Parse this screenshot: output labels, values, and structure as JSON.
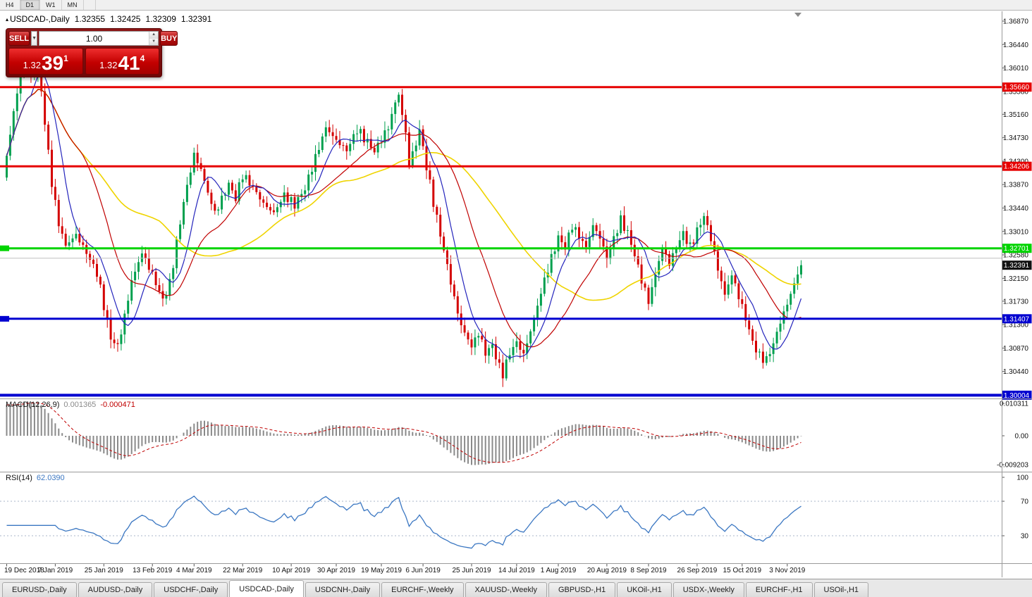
{
  "toolbar": {
    "timeframes": [
      {
        "label": "H4",
        "active": false
      },
      {
        "label": "D1",
        "active": true
      },
      {
        "label": "W1",
        "active": false
      },
      {
        "label": "MN",
        "active": false
      }
    ]
  },
  "header": {
    "marker": "▴",
    "symbol": "USDCAD-,Daily",
    "open": "1.32355",
    "high": "1.32425",
    "low": "1.32309",
    "close": "1.32391"
  },
  "one_click": {
    "sell_label": "SELL",
    "buy_label": "BUY",
    "volume": "1.00",
    "dropdown_icon": "▼",
    "spinner_up": "▲",
    "spinner_down": "▼",
    "sell_price": {
      "prefix": "1.32",
      "big": "39",
      "sup": "1"
    },
    "buy_price": {
      "prefix": "1.32",
      "big": "41",
      "sup": "4"
    }
  },
  "price_axis_ticks": [
    "1.36870",
    "1.36440",
    "1.36010",
    "1.35580",
    "1.35160",
    "1.34730",
    "1.34300",
    "1.33870",
    "1.33440",
    "1.33010",
    "1.32580",
    "1.32150",
    "1.31730",
    "1.31300",
    "1.30870",
    "1.30440"
  ],
  "macd_panel": {
    "title": "MACD(12,26,9)",
    "main_value": "0.001365",
    "signal_value": "-0.000471",
    "axis_labels": [
      {
        "text": "0.010311",
        "value": 0.010311
      },
      {
        "text": "0.00",
        "value": 0
      },
      {
        "text": "-0.009203",
        "value": -0.009203
      }
    ]
  },
  "rsi_panel": {
    "title": "RSI(14)",
    "value": "62.0390",
    "axis_labels": [
      {
        "text": "100",
        "value": 100
      },
      {
        "text": "70",
        "value": 70
      },
      {
        "text": "30",
        "value": 30
      }
    ],
    "levels": [
      70,
      30
    ]
  },
  "date_axis": {
    "labels": [
      "19 Dec 2018",
      "7 Jan 2019",
      "25 Jan 2019",
      "13 Feb 2019",
      "4 Mar 2019",
      "22 Mar 2019",
      "10 Apr 2019",
      "30 Apr 2019",
      "19 May 2019",
      "6 Jun 2019",
      "25 Jun 2019",
      "14 Jul 2019",
      "1 Aug 2019",
      "20 Aug 2019",
      "8 Sep 2019",
      "26 Sep 2019",
      "15 Oct 2019",
      "3 Nov 2019"
    ],
    "indices": [
      0,
      14,
      28,
      42,
      54,
      68,
      82,
      95,
      108,
      120,
      134,
      147,
      159,
      173,
      185,
      199,
      212,
      225
    ]
  },
  "tabs": [
    {
      "label": "EURUSD-,Daily",
      "active": false
    },
    {
      "label": "AUDUSD-,Daily",
      "active": false
    },
    {
      "label": "USDCHF-,Daily",
      "active": false
    },
    {
      "label": "USDCAD-,Daily",
      "active": true
    },
    {
      "label": "USDCNH-,Daily",
      "active": false
    },
    {
      "label": "EURCHF-,Weekly",
      "active": false
    },
    {
      "label": "XAUUSD-,Weekly",
      "active": false
    },
    {
      "label": "GBPUSD-,H1",
      "active": false
    },
    {
      "label": "UKOil-,H1",
      "active": false
    },
    {
      "label": "USDX-,Weekly",
      "active": false
    },
    {
      "label": "EURCHF-,H1",
      "active": false
    },
    {
      "label": "USOil-,H1",
      "active": false
    }
  ],
  "chart_data": {
    "type": "candlestick",
    "symbol": "USDCAD",
    "timeframe": "Daily",
    "num_candles": 230,
    "last_close": 1.32391,
    "quote": {
      "open": 1.32355,
      "high": 1.32425,
      "low": 1.32309,
      "close": 1.32391,
      "bid": 1.32391,
      "ask": 1.32414
    },
    "price_range": {
      "top": 1.3687,
      "bottom": 1.3044
    },
    "close_waypoints": [
      [
        0,
        1.344
      ],
      [
        2,
        1.352
      ],
      [
        4,
        1.359
      ],
      [
        6,
        1.3625
      ],
      [
        7,
        1.358
      ],
      [
        9,
        1.3618
      ],
      [
        11,
        1.35
      ],
      [
        13,
        1.339
      ],
      [
        15,
        1.3315
      ],
      [
        17,
        1.3275
      ],
      [
        20,
        1.3295
      ],
      [
        23,
        1.3262
      ],
      [
        26,
        1.3225
      ],
      [
        28,
        1.3165
      ],
      [
        30,
        1.3105
      ],
      [
        32,
        1.309
      ],
      [
        34,
        1.3145
      ],
      [
        36,
        1.321
      ],
      [
        39,
        1.3262
      ],
      [
        42,
        1.3222
      ],
      [
        45,
        1.3175
      ],
      [
        47,
        1.3205
      ],
      [
        49,
        1.328
      ],
      [
        51,
        1.3355
      ],
      [
        54,
        1.3442
      ],
      [
        56,
        1.3415
      ],
      [
        58,
        1.3372
      ],
      [
        60,
        1.3335
      ],
      [
        62,
        1.336
      ],
      [
        64,
        1.3388
      ],
      [
        66,
        1.3362
      ],
      [
        68,
        1.3405
      ],
      [
        71,
        1.3382
      ],
      [
        74,
        1.3352
      ],
      [
        77,
        1.3335
      ],
      [
        80,
        1.3368
      ],
      [
        83,
        1.335
      ],
      [
        86,
        1.338
      ],
      [
        88,
        1.3418
      ],
      [
        90,
        1.3455
      ],
      [
        92,
        1.3492
      ],
      [
        95,
        1.3468
      ],
      [
        98,
        1.345
      ],
      [
        101,
        1.3488
      ],
      [
        104,
        1.3465
      ],
      [
        106,
        1.3448
      ],
      [
        108,
        1.347
      ],
      [
        110,
        1.3492
      ],
      [
        112,
        1.3538
      ],
      [
        113,
        1.3552
      ],
      [
        115,
        1.348
      ],
      [
        116,
        1.3425
      ],
      [
        118,
        1.3462
      ],
      [
        119,
        1.3488
      ],
      [
        121,
        1.342
      ],
      [
        123,
        1.3355
      ],
      [
        125,
        1.3295
      ],
      [
        127,
        1.3238
      ],
      [
        129,
        1.3178
      ],
      [
        131,
        1.3128
      ],
      [
        134,
        1.309
      ],
      [
        136,
        1.3115
      ],
      [
        138,
        1.3078
      ],
      [
        140,
        1.3092
      ],
      [
        142,
        1.3052
      ],
      [
        143,
        1.304
      ],
      [
        145,
        1.3078
      ],
      [
        147,
        1.3098
      ],
      [
        149,
        1.3075
      ],
      [
        151,
        1.3118
      ],
      [
        153,
        1.3165
      ],
      [
        155,
        1.3212
      ],
      [
        157,
        1.3252
      ],
      [
        159,
        1.329
      ],
      [
        161,
        1.3272
      ],
      [
        163,
        1.3312
      ],
      [
        165,
        1.3292
      ],
      [
        167,
        1.3272
      ],
      [
        169,
        1.3312
      ],
      [
        171,
        1.329
      ],
      [
        173,
        1.3252
      ],
      [
        175,
        1.3288
      ],
      [
        177,
        1.3322
      ],
      [
        179,
        1.3298
      ],
      [
        181,
        1.3258
      ],
      [
        183,
        1.3212
      ],
      [
        185,
        1.3172
      ],
      [
        187,
        1.3222
      ],
      [
        189,
        1.3272
      ],
      [
        191,
        1.3242
      ],
      [
        193,
        1.3272
      ],
      [
        195,
        1.3298
      ],
      [
        197,
        1.3272
      ],
      [
        199,
        1.3302
      ],
      [
        201,
        1.333
      ],
      [
        203,
        1.3288
      ],
      [
        205,
        1.3232
      ],
      [
        207,
        1.3185
      ],
      [
        209,
        1.3222
      ],
      [
        211,
        1.3182
      ],
      [
        213,
        1.3142
      ],
      [
        215,
        1.3098
      ],
      [
        217,
        1.3072
      ],
      [
        219,
        1.3065
      ],
      [
        221,
        1.3095
      ],
      [
        223,
        1.3135
      ],
      [
        225,
        1.3168
      ],
      [
        227,
        1.3205
      ],
      [
        229,
        1.32391
      ]
    ],
    "levels": [
      {
        "price": 1.3566,
        "label": "1.35660",
        "color": "#e60000",
        "width": 3,
        "left_tag": false
      },
      {
        "price": 1.34206,
        "label": "1.34206",
        "color": "#e60000",
        "width": 3,
        "left_tag": false
      },
      {
        "price": 1.32701,
        "label": "1.32701",
        "color": "#00d400",
        "width": 3,
        "left_tag": true
      },
      {
        "price": 1.3252,
        "label": "",
        "color": "#c0c0c0",
        "width": 1,
        "left_tag": false
      },
      {
        "price": 1.31407,
        "label": "1.31407",
        "color": "#0000d0",
        "width": 3,
        "left_tag": true
      },
      {
        "price": 1.30004,
        "label": "1.30004",
        "color": "#0000d0",
        "width": 4,
        "left_tag": false
      }
    ],
    "current_price": {
      "price": 1.32391,
      "label": "1.32391"
    },
    "colors": {
      "bull": "#00a04e",
      "bear": "#d40000",
      "ma_fast": "#2424bc",
      "ma_mid": "#c00000",
      "ma_slow": "#efd400",
      "macd_hist": "#8a8a8a",
      "macd_signal": "#c00000",
      "rsi": "#3b77c2"
    },
    "moving_average_periods": {
      "fast": 8,
      "mid": 21,
      "slow": 45
    },
    "macd_params": [
      12,
      26,
      9
    ],
    "rsi_period": 14
  }
}
